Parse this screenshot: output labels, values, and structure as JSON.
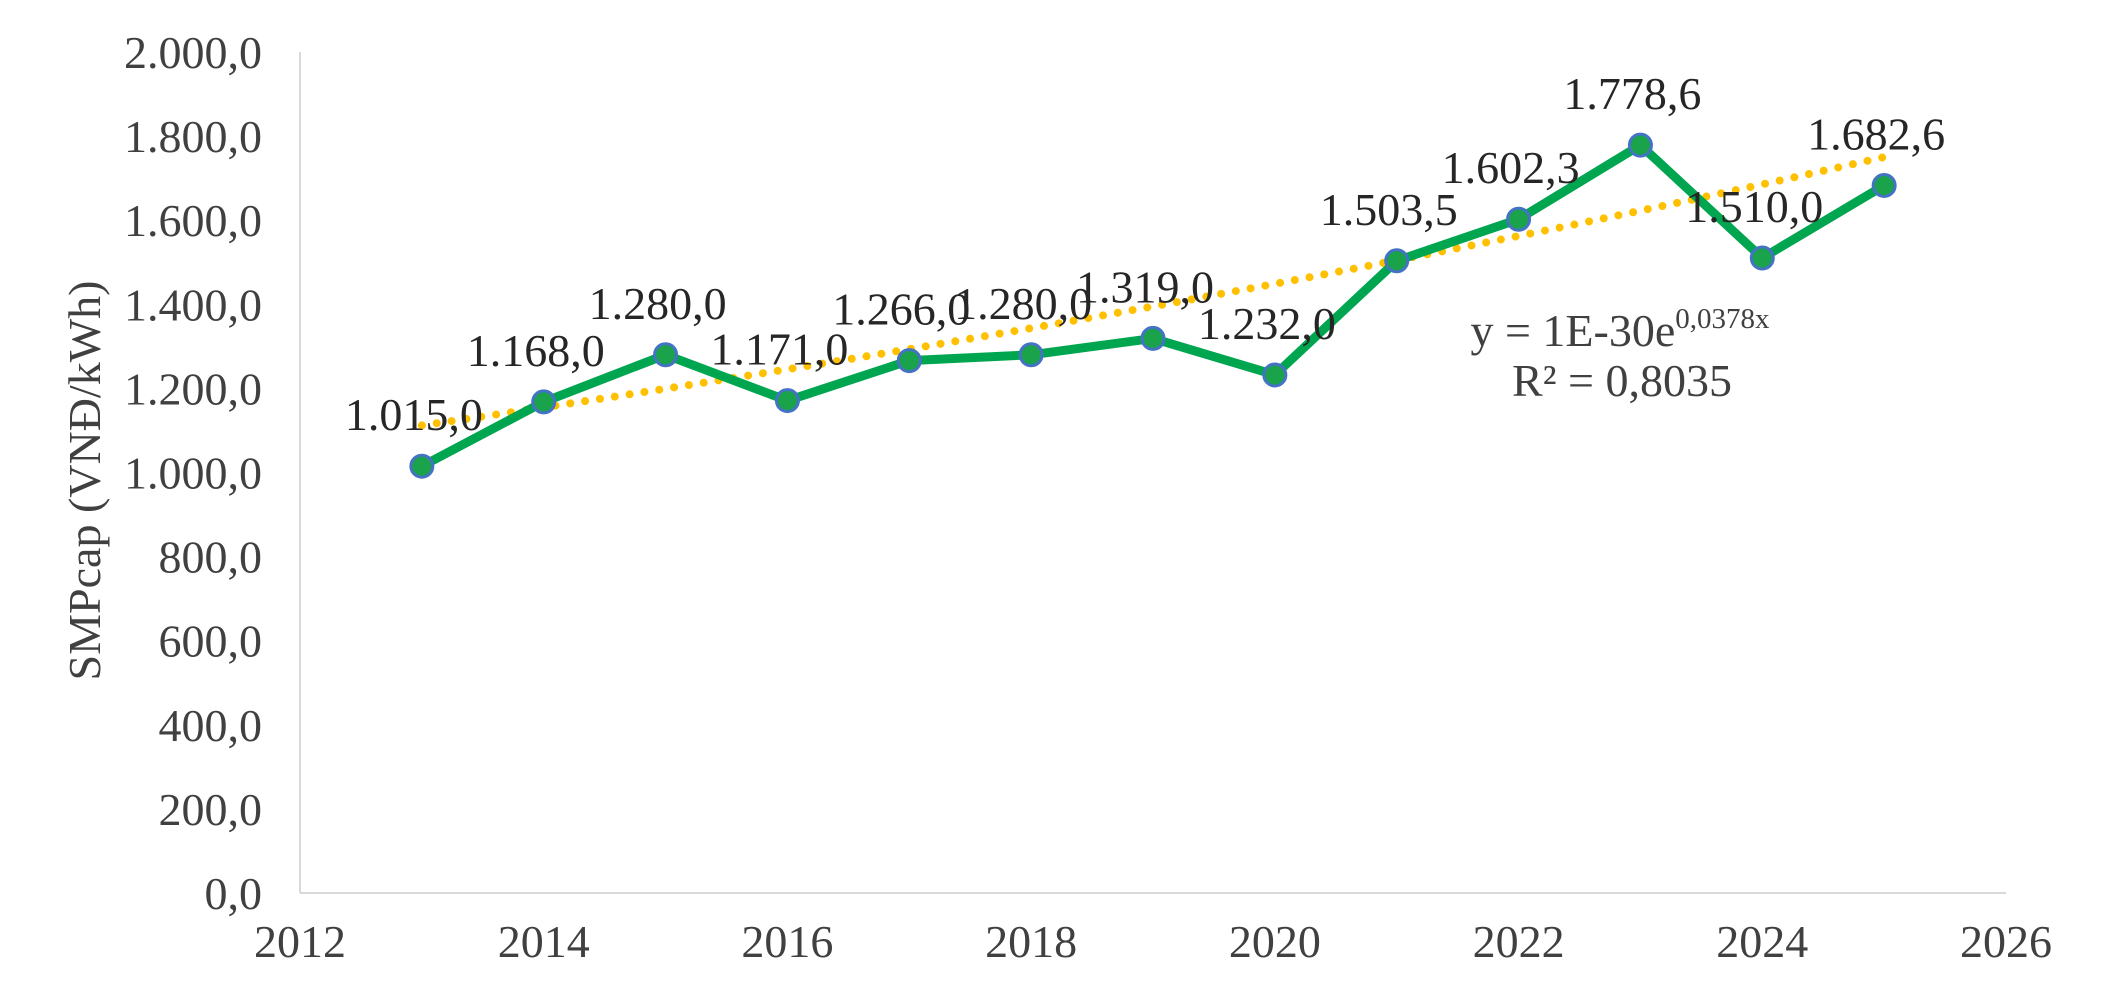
{
  "chart_data": {
    "type": "line",
    "title": "",
    "xlabel": "",
    "ylabel": "SMPcap (VNĐ/kWh)",
    "xlim": [
      2012,
      2026
    ],
    "ylim": [
      0,
      2000
    ],
    "x_ticks": [
      "2012",
      "2014",
      "2016",
      "2018",
      "2020",
      "2022",
      "2024",
      "2026"
    ],
    "y_ticks": [
      "0,0",
      "200,0",
      "400,0",
      "600,0",
      "800,0",
      "1.000,0",
      "1.200,0",
      "1.400,0",
      "1.600,0",
      "1.800,0",
      "2.000,0"
    ],
    "grid": false,
    "legend": "none",
    "series": [
      {
        "x": [
          2013,
          2014,
          2015,
          2016,
          2017,
          2018,
          2019,
          2020,
          2021,
          2022,
          2023,
          2024,
          2025
        ],
        "values": [
          1015.0,
          1168.0,
          1280.0,
          1171.0,
          1266.0,
          1280.0,
          1319.0,
          1232.0,
          1503.5,
          1602.3,
          1778.6,
          1510.0,
          1682.6
        ],
        "labels": [
          "1.015,0",
          "1.168,0",
          "1.280,0",
          "1.171,0",
          "1.266,0",
          "1.280,0",
          "1.319,0",
          "1.232,0",
          "1.503,5",
          "1.602,3",
          "1.778,6",
          "1.510,0",
          "1.682,6"
        ],
        "line_color": "#00A64F",
        "marker_color": "#1AA34A",
        "marker_edge_color": "#4472C4"
      }
    ],
    "trendline": {
      "type": "exponential",
      "color": "#FFC000",
      "style": "dotted",
      "a": 1e-30,
      "b": 0.0378,
      "equation_prefix": "y = 1E-30e",
      "equation_exponent": "0,0378x",
      "r_squared": "R² = 0,8035"
    }
  }
}
